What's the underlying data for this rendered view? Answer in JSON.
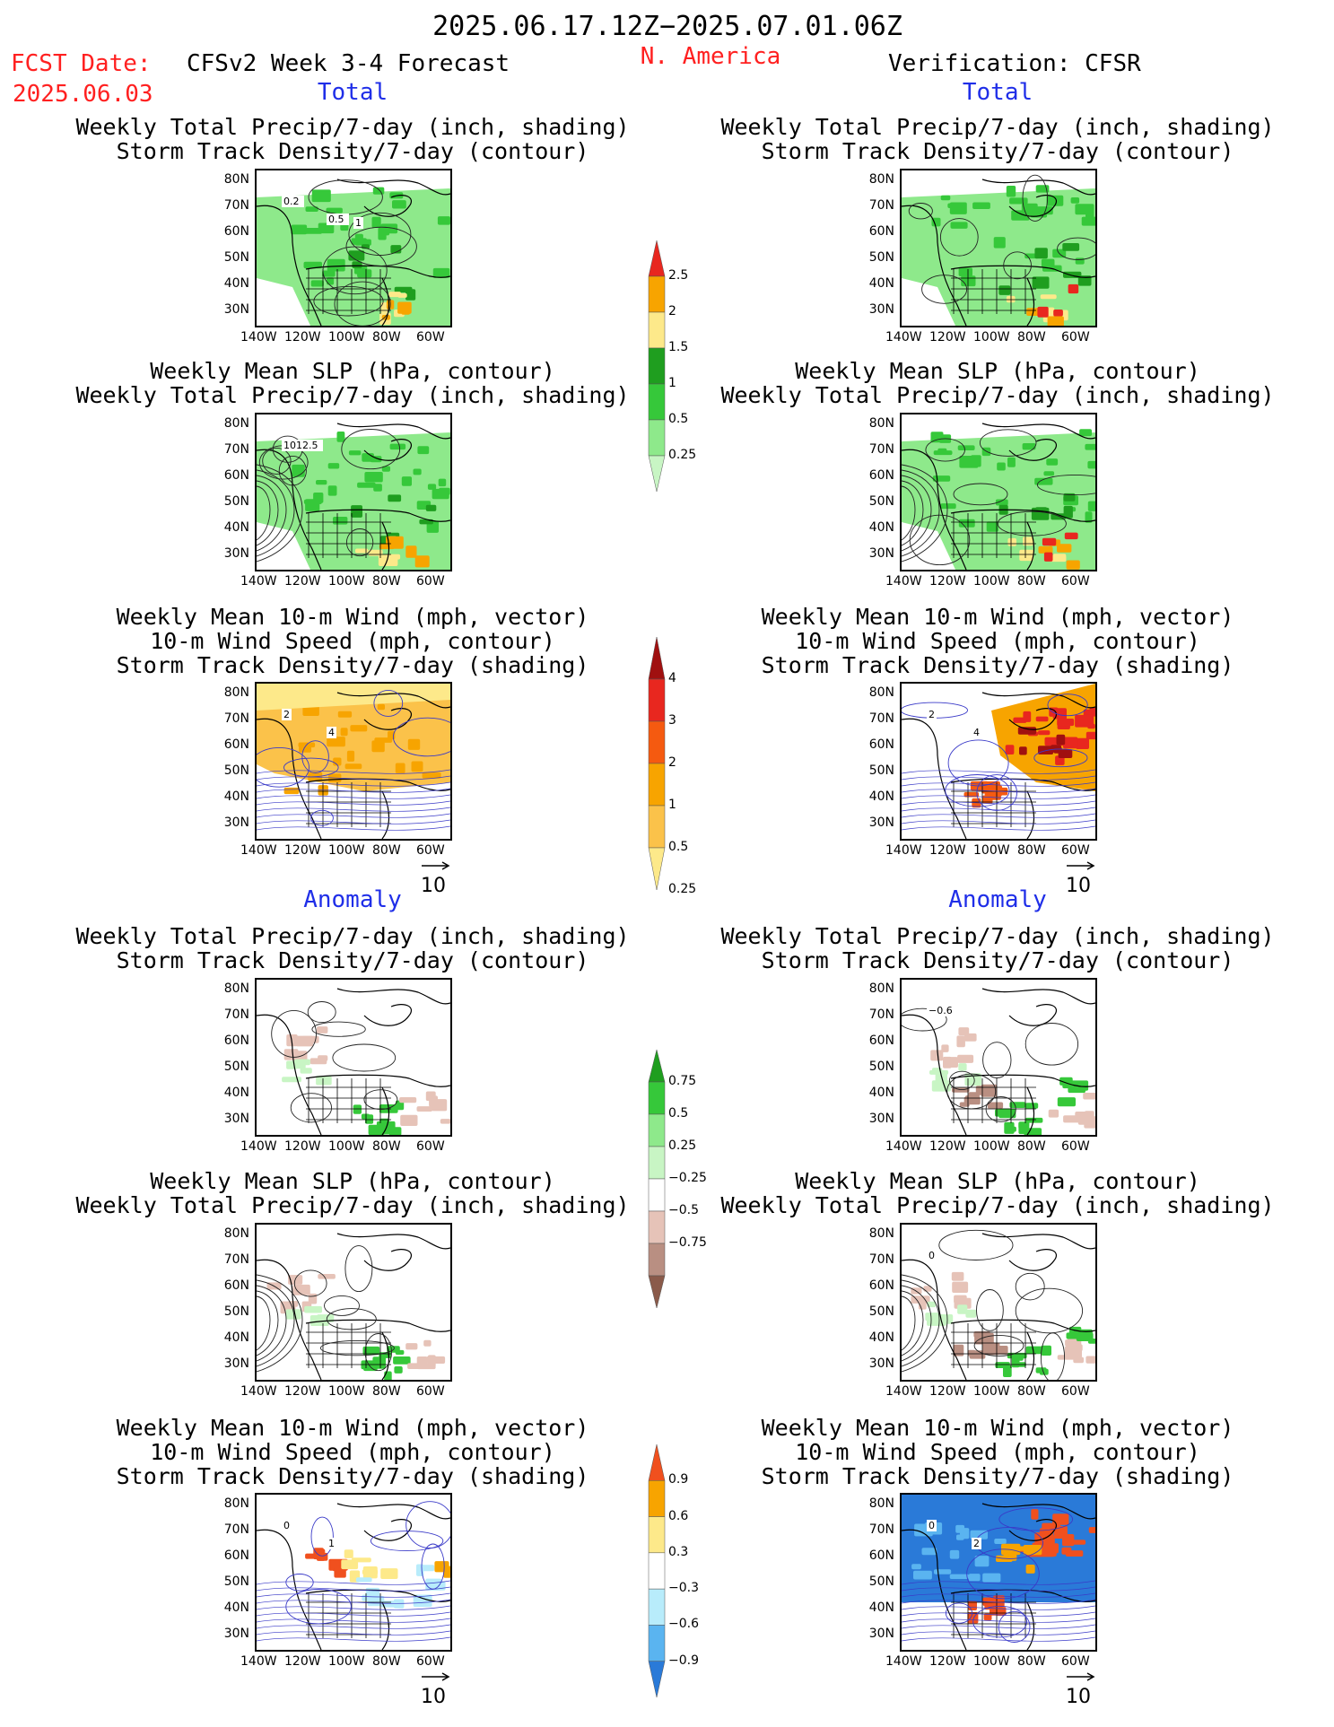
{
  "header": {
    "period": "2025.06.17.12Z−2025.07.01.06Z",
    "fcst_label": "FCST Date:",
    "fcst_date": "2025.06.03",
    "model": "CFSv2 Week 3-4 Forecast",
    "region": "N. America",
    "verification": "Verification: CFSR"
  },
  "sections": {
    "total": "Total",
    "anomaly": "Anomaly"
  },
  "titles": {
    "precip_storm": [
      "Weekly Total Precip/7-day (inch, shading)",
      "Storm Track Density/7-day (contour)"
    ],
    "slp_precip": [
      "Weekly Mean SLP (hPa, contour)",
      "Weekly Total Precip/7-day (inch, shading)"
    ],
    "wind_storm": [
      "Weekly Mean 10-m Wind (mph, vector)",
      "10-m Wind Speed (mph, contour)",
      "Storm Track Density/7-day (shading)"
    ]
  },
  "axes": {
    "lat": [
      "80N",
      "70N",
      "60N",
      "50N",
      "40N",
      "30N"
    ],
    "lon": [
      "140W",
      "120W",
      "100W",
      "80W",
      "60W"
    ]
  },
  "vector_ref": "10",
  "colorbars": {
    "total_precip": {
      "labels": [
        "2.5",
        "2",
        "1.5",
        "1",
        "0.5",
        "0.25"
      ],
      "colors": [
        "#e8271f",
        "#f7a400",
        "#fde98a",
        "#1f9e1f",
        "#36c83a",
        "#8ee98b",
        "#c8f5c4"
      ]
    },
    "total_storm": {
      "labels": [
        "4",
        "3",
        "2",
        "1",
        "0.5",
        "0.25"
      ],
      "colors": [
        "#a01010",
        "#e8271f",
        "#f55a10",
        "#f7a400",
        "#fbc24a",
        "#fde98a"
      ]
    },
    "anom_precip": {
      "labels": [
        "0.75",
        "0.5",
        "0.25",
        "−0.25",
        "−0.5",
        "−0.75"
      ],
      "colors": [
        "#1f9e1f",
        "#36c83a",
        "#8ee98b",
        "#c8f5c4",
        "#ffffff",
        "#e6c3b8",
        "#b98f82",
        "#8a5a4a"
      ]
    },
    "anom_storm": {
      "labels": [
        "0.9",
        "0.6",
        "0.3",
        "−0.3",
        "−0.6",
        "−0.9"
      ],
      "colors": [
        "#f0501e",
        "#f7a400",
        "#fde98a",
        "#ffffff",
        "#b8ecfb",
        "#5ab4f0",
        "#2a7ad8"
      ]
    }
  },
  "contour_labels": {
    "l_precip_storm": [
      "0.2",
      "0.5",
      "1"
    ],
    "l_slp_precip": [
      "1012.5"
    ],
    "l_wind_storm": [
      "2",
      "4"
    ],
    "r_wind_storm": [
      "2",
      "4"
    ],
    "r_anom_precip_storm": [
      "−0.6"
    ],
    "r_anom_slp_precip": [
      "0"
    ],
    "l_anom_wind_storm": [
      "0",
      "1"
    ],
    "r_anom_wind_storm": [
      "0",
      "2"
    ]
  }
}
